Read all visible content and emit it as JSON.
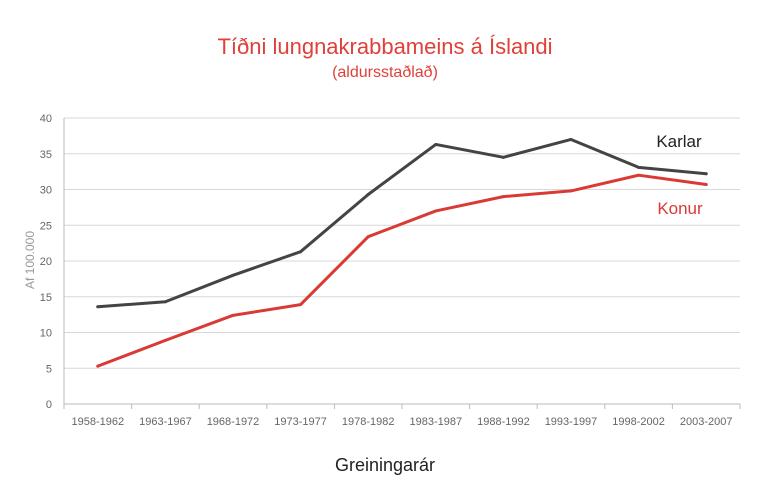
{
  "chart_data": {
    "type": "line",
    "title": "Tíðni lungnakrabbameins á Íslandi",
    "subtitle": "(aldursstaðlað)",
    "xlabel": "Greiningarár",
    "ylabel": "Af 100.000",
    "ylim": [
      0,
      40
    ],
    "yticks": [
      0,
      5,
      10,
      15,
      20,
      25,
      30,
      35,
      40
    ],
    "grid": true,
    "categories": [
      "1958-1962",
      "1963-1967",
      "1968-1972",
      "1973-1977",
      "1978-1982",
      "1983-1987",
      "1988-1992",
      "1993-1997",
      "1998-2002",
      "2003-2007"
    ],
    "series": [
      {
        "name": "Karlar",
        "color": "#444444",
        "values": [
          13.6,
          14.3,
          18.0,
          21.3,
          29.3,
          36.3,
          34.5,
          37.0,
          33.1,
          32.2
        ]
      },
      {
        "name": "Konur",
        "color": "#d93a34",
        "values": [
          5.3,
          8.9,
          12.4,
          13.9,
          23.4,
          27.0,
          29.0,
          29.8,
          32.0,
          30.7
        ]
      }
    ]
  }
}
